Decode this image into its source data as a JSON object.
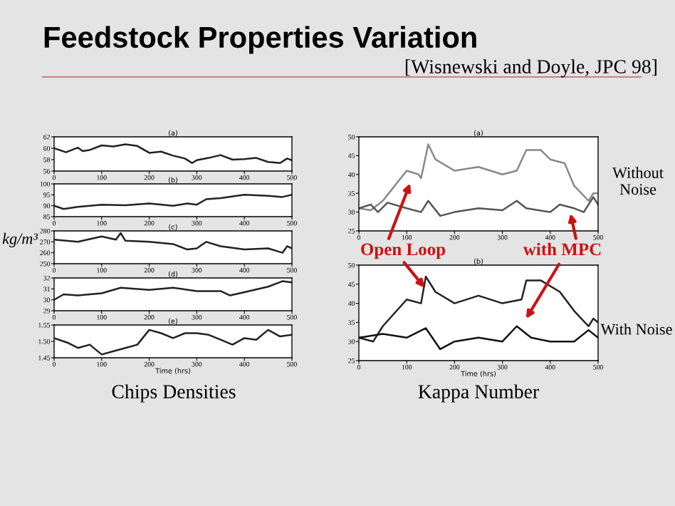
{
  "chart_data": [
    {
      "type": "line",
      "title": "(a)",
      "xlim": [
        0,
        500
      ],
      "ylim": [
        56,
        62
      ],
      "xticks": [
        0,
        100,
        200,
        300,
        400,
        500
      ],
      "yticks": [
        56,
        58,
        60,
        62
      ],
      "annotations": [
        "Feedstock Properties Variation",
        "[Wisnewski and Doyle, JPC 98]"
      ],
      "series": [
        {
          "color": "#222222",
          "x": [
            0,
            25,
            50,
            60,
            75,
            100,
            125,
            150,
            175,
            200,
            225,
            250,
            275,
            290,
            300,
            325,
            350,
            375,
            400,
            425,
            450,
            475,
            490,
            500
          ],
          "values": [
            60,
            59.3,
            60.1,
            59.5,
            59.7,
            60.5,
            60.3,
            60.7,
            60.4,
            59.2,
            59.4,
            58.7,
            58.2,
            57.4,
            57.9,
            58.3,
            58.8,
            58.0,
            58.1,
            58.3,
            57.6,
            57.4,
            58.2,
            57.9
          ]
        }
      ]
    },
    {
      "type": "line",
      "title": "(b)",
      "xlim": [
        0,
        500
      ],
      "ylim": [
        85,
        100
      ],
      "xticks": [
        0,
        100,
        200,
        300,
        400,
        500
      ],
      "yticks": [
        85,
        90,
        95,
        100
      ],
      "series": [
        {
          "color": "#222222",
          "x": [
            0,
            20,
            50,
            100,
            150,
            200,
            250,
            280,
            300,
            320,
            350,
            400,
            450,
            480,
            500
          ],
          "values": [
            90,
            88.5,
            89.5,
            90.5,
            90.2,
            91,
            90,
            91,
            90.5,
            93,
            93.5,
            95,
            94.5,
            94,
            95
          ]
        }
      ]
    },
    {
      "type": "line",
      "title": "(c)",
      "xlim": [
        0,
        500
      ],
      "ylim": [
        250,
        280
      ],
      "xticks": [
        0,
        100,
        200,
        300,
        400,
        500
      ],
      "yticks": [
        250,
        260,
        270,
        280
      ],
      "ylabel": "kg/m³",
      "series": [
        {
          "color": "#222222",
          "x": [
            0,
            50,
            100,
            130,
            140,
            150,
            200,
            250,
            280,
            300,
            320,
            350,
            400,
            450,
            480,
            490,
            500
          ],
          "values": [
            272,
            270,
            275,
            272,
            278,
            271,
            270,
            268,
            263,
            264,
            270,
            266,
            263,
            264,
            260,
            266,
            264
          ]
        }
      ]
    },
    {
      "type": "line",
      "title": "(d)",
      "xlim": [
        0,
        500
      ],
      "ylim": [
        29,
        32
      ],
      "xticks": [
        0,
        100,
        200,
        300,
        400,
        500
      ],
      "yticks": [
        29,
        30,
        31,
        32
      ],
      "series": [
        {
          "color": "#222222",
          "x": [
            0,
            20,
            50,
            100,
            140,
            200,
            250,
            300,
            350,
            370,
            400,
            450,
            480,
            500
          ],
          "values": [
            30,
            30.5,
            30.4,
            30.6,
            31.1,
            30.9,
            31.1,
            30.8,
            30.8,
            30.4,
            30.7,
            31.2,
            31.7,
            31.6
          ]
        }
      ]
    },
    {
      "type": "line",
      "title": "(e)",
      "xlim": [
        0,
        500
      ],
      "ylim": [
        1.45,
        1.55
      ],
      "xticks": [
        0,
        100,
        200,
        300,
        400,
        500
      ],
      "yticks": [
        1.45,
        {
          "value": 1.5,
          "label": "1.50"
        },
        1.55
      ],
      "xlabel": "Time (hrs)",
      "annotations": [
        "Chips Densities"
      ],
      "series": [
        {
          "color": "#222222",
          "x": [
            0,
            30,
            50,
            75,
            100,
            125,
            150,
            175,
            200,
            225,
            250,
            275,
            300,
            325,
            350,
            375,
            400,
            425,
            450,
            475,
            500
          ],
          "values": [
            1.51,
            1.495,
            1.48,
            1.49,
            1.46,
            1.47,
            1.48,
            1.49,
            1.535,
            1.525,
            1.51,
            1.525,
            1.525,
            1.52,
            1.505,
            1.49,
            1.51,
            1.505,
            1.535,
            1.515,
            1.52
          ]
        }
      ]
    },
    {
      "type": "line",
      "title": "(a)",
      "xlim": [
        0,
        500
      ],
      "ylim": [
        25,
        50
      ],
      "xticks": [
        0,
        100,
        200,
        300,
        400,
        500
      ],
      "yticks": [
        25,
        30,
        35,
        40,
        45,
        50
      ],
      "annotations": [
        "Open Loop",
        "with MPC",
        "Without Noise"
      ],
      "series": [
        {
          "color": "#888888",
          "x": [
            0,
            25,
            50,
            75,
            100,
            125,
            130,
            145,
            160,
            200,
            250,
            300,
            330,
            350,
            380,
            400,
            430,
            450,
            480,
            490,
            500
          ],
          "values": [
            31,
            30.5,
            33,
            37,
            41,
            40,
            39,
            48,
            44,
            41,
            42,
            40,
            41,
            46.5,
            46.5,
            44,
            43,
            37,
            33,
            35,
            35
          ]
        },
        {
          "color": "#555555",
          "x": [
            0,
            25,
            40,
            60,
            100,
            130,
            145,
            170,
            200,
            250,
            300,
            330,
            350,
            400,
            420,
            450,
            470,
            490,
            500
          ],
          "values": [
            31,
            32,
            30,
            32.5,
            31,
            30,
            33,
            29,
            30,
            31,
            30.5,
            33,
            31,
            30,
            32,
            31,
            30,
            34,
            32
          ]
        }
      ]
    },
    {
      "type": "line",
      "title": "(b)",
      "xlim": [
        0,
        500
      ],
      "ylim": [
        25,
        50
      ],
      "xticks": [
        0,
        100,
        200,
        300,
        400,
        500
      ],
      "yticks": [
        25,
        30,
        35,
        40,
        45,
        50
      ],
      "xlabel": "Time (hrs)",
      "annotations": [
        "With Noise",
        "Kappa Number"
      ],
      "series": [
        {
          "color": "#222222",
          "x": [
            0,
            30,
            50,
            100,
            130,
            140,
            160,
            200,
            250,
            300,
            340,
            350,
            380,
            420,
            450,
            480,
            490,
            500
          ],
          "values": [
            31,
            30,
            34,
            41,
            40,
            47,
            43,
            40,
            42,
            40,
            41,
            46,
            46,
            43,
            38,
            34,
            36,
            35
          ]
        },
        {
          "color": "#111111",
          "x": [
            0,
            50,
            100,
            140,
            170,
            200,
            250,
            300,
            330,
            360,
            400,
            450,
            480,
            500
          ],
          "values": [
            31,
            32,
            31,
            33.5,
            28,
            30,
            31,
            30,
            34,
            31,
            30,
            30,
            33,
            31
          ]
        }
      ]
    }
  ]
}
